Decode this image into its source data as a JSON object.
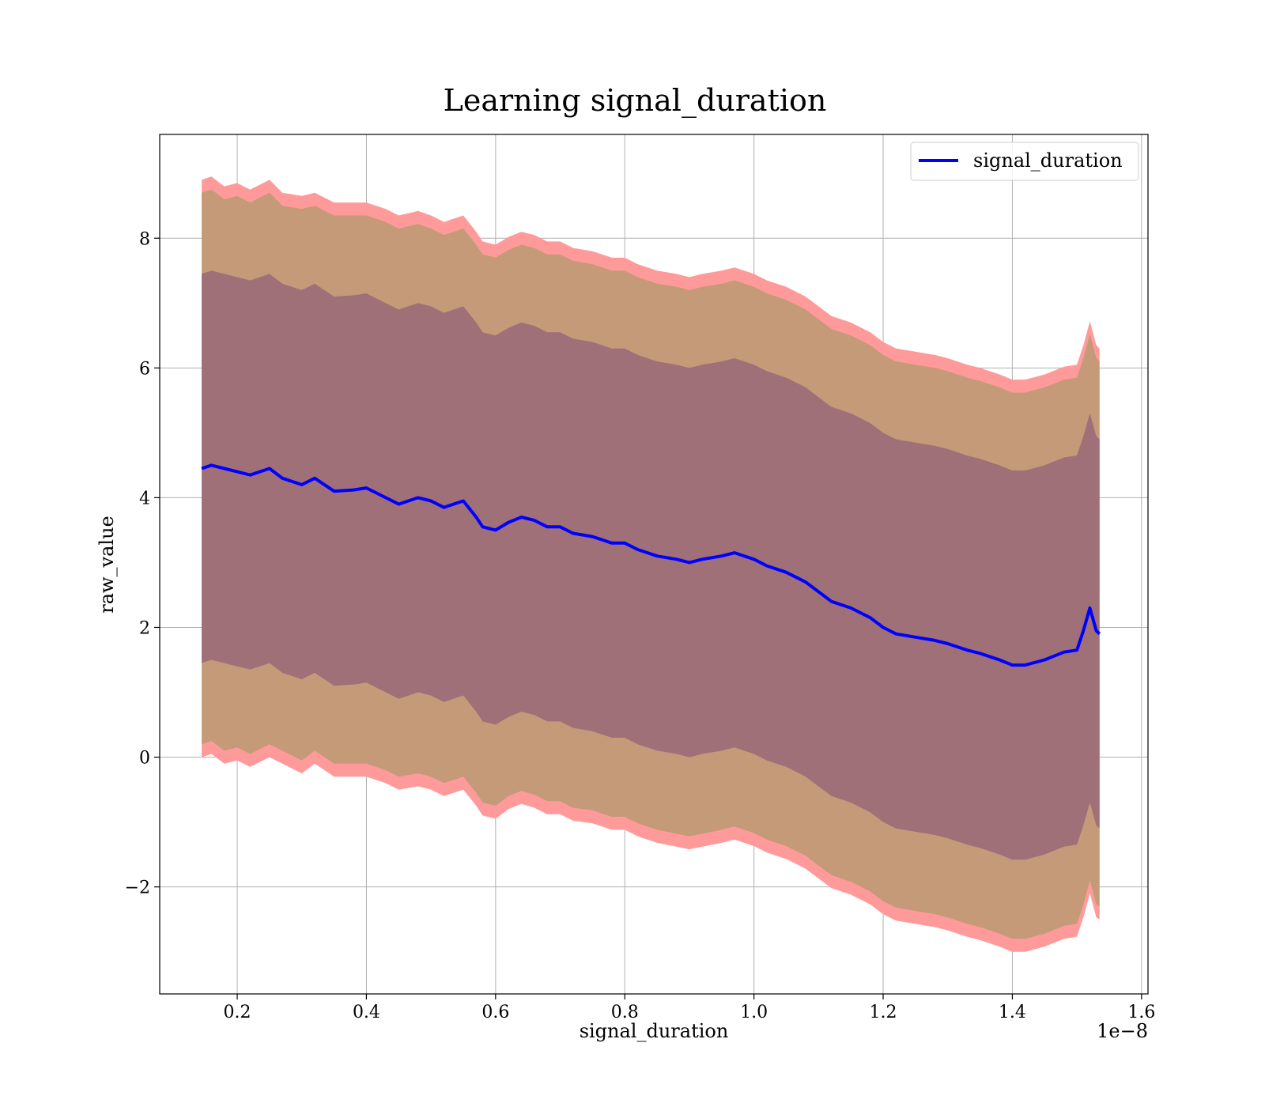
{
  "chart_data": {
    "type": "area",
    "title": "Learning signal_duration",
    "xlabel": "signal_duration",
    "ylabel": "raw_value",
    "x_offset_label": "1e−8",
    "xlim": [
      0.08,
      1.61
    ],
    "ylim": [
      -3.65,
      9.6
    ],
    "x_ticks": [
      {
        "value": 0.2,
        "label": "0.2"
      },
      {
        "value": 0.4,
        "label": "0.4"
      },
      {
        "value": 0.6,
        "label": "0.6"
      },
      {
        "value": 0.8,
        "label": "0.8"
      },
      {
        "value": 1.0,
        "label": "1.0"
      },
      {
        "value": 1.2,
        "label": "1.2"
      },
      {
        "value": 1.4,
        "label": "1.4"
      },
      {
        "value": 1.6,
        "label": "1.6"
      }
    ],
    "y_ticks": [
      {
        "value": -2,
        "label": "−2"
      },
      {
        "value": 0,
        "label": "0"
      },
      {
        "value": 2,
        "label": "2"
      },
      {
        "value": 4,
        "label": "4"
      },
      {
        "value": 6,
        "label": "6"
      },
      {
        "value": 8,
        "label": "8"
      }
    ],
    "grid": true,
    "legend": {
      "position": "top-right",
      "entries": [
        "signal_duration"
      ]
    },
    "x": [
      0.145,
      0.16,
      0.18,
      0.2,
      0.22,
      0.25,
      0.27,
      0.3,
      0.32,
      0.35,
      0.38,
      0.4,
      0.43,
      0.45,
      0.48,
      0.5,
      0.52,
      0.55,
      0.57,
      0.58,
      0.6,
      0.62,
      0.64,
      0.66,
      0.68,
      0.7,
      0.72,
      0.75,
      0.78,
      0.8,
      0.82,
      0.85,
      0.88,
      0.9,
      0.92,
      0.95,
      0.97,
      1.0,
      1.02,
      1.05,
      1.08,
      1.1,
      1.12,
      1.15,
      1.18,
      1.2,
      1.22,
      1.25,
      1.28,
      1.3,
      1.33,
      1.35,
      1.38,
      1.4,
      1.42,
      1.45,
      1.48,
      1.5,
      1.51,
      1.52,
      1.53,
      1.535
    ],
    "series": [
      {
        "name": "signal_duration",
        "color": "#0000ff",
        "values": [
          4.45,
          4.5,
          4.45,
          4.4,
          4.35,
          4.45,
          4.3,
          4.2,
          4.3,
          4.1,
          4.12,
          4.15,
          4.0,
          3.9,
          4.0,
          3.95,
          3.85,
          3.95,
          3.7,
          3.55,
          3.5,
          3.62,
          3.7,
          3.65,
          3.55,
          3.55,
          3.45,
          3.4,
          3.3,
          3.3,
          3.2,
          3.1,
          3.05,
          3.0,
          3.05,
          3.1,
          3.15,
          3.05,
          2.95,
          2.85,
          2.7,
          2.55,
          2.4,
          2.3,
          2.15,
          2.0,
          1.9,
          1.85,
          1.8,
          1.75,
          1.65,
          1.6,
          1.5,
          1.42,
          1.42,
          1.5,
          1.62,
          1.65,
          1.95,
          2.3,
          1.95,
          1.9
        ]
      }
    ],
    "bands": [
      {
        "name": "outer",
        "color": "#ff9a9a",
        "upper": [
          8.9,
          8.95,
          8.8,
          8.85,
          8.75,
          8.9,
          8.7,
          8.65,
          8.7,
          8.55,
          8.55,
          8.55,
          8.45,
          8.35,
          8.42,
          8.35,
          8.25,
          8.35,
          8.1,
          7.95,
          7.9,
          8.02,
          8.1,
          8.05,
          7.95,
          7.95,
          7.85,
          7.8,
          7.7,
          7.7,
          7.6,
          7.5,
          7.45,
          7.4,
          7.45,
          7.5,
          7.55,
          7.45,
          7.35,
          7.25,
          7.1,
          6.95,
          6.8,
          6.7,
          6.55,
          6.4,
          6.3,
          6.25,
          6.2,
          6.15,
          6.05,
          6.0,
          5.9,
          5.82,
          5.82,
          5.9,
          6.02,
          6.05,
          6.35,
          6.72,
          6.35,
          6.3
        ],
        "lower": [
          0.0,
          0.05,
          -0.1,
          -0.05,
          -0.15,
          0.0,
          -0.1,
          -0.25,
          -0.1,
          -0.3,
          -0.3,
          -0.3,
          -0.4,
          -0.5,
          -0.45,
          -0.5,
          -0.6,
          -0.5,
          -0.75,
          -0.9,
          -0.95,
          -0.8,
          -0.72,
          -0.78,
          -0.88,
          -0.88,
          -0.98,
          -1.02,
          -1.12,
          -1.12,
          -1.22,
          -1.32,
          -1.38,
          -1.42,
          -1.38,
          -1.32,
          -1.27,
          -1.37,
          -1.47,
          -1.57,
          -1.72,
          -1.87,
          -2.02,
          -2.12,
          -2.27,
          -2.42,
          -2.52,
          -2.57,
          -2.62,
          -2.67,
          -2.77,
          -2.82,
          -2.92,
          -3.0,
          -3.0,
          -2.92,
          -2.8,
          -2.77,
          -2.47,
          -2.1,
          -2.47,
          -2.5
        ]
      },
      {
        "name": "middle",
        "color": "#c49a78",
        "upper": [
          8.7,
          8.75,
          8.6,
          8.65,
          8.55,
          8.7,
          8.5,
          8.45,
          8.5,
          8.35,
          8.35,
          8.35,
          8.25,
          8.15,
          8.22,
          8.15,
          8.05,
          8.15,
          7.9,
          7.75,
          7.7,
          7.82,
          7.9,
          7.85,
          7.75,
          7.75,
          7.65,
          7.6,
          7.5,
          7.5,
          7.4,
          7.3,
          7.25,
          7.2,
          7.25,
          7.3,
          7.35,
          7.25,
          7.15,
          7.05,
          6.9,
          6.75,
          6.6,
          6.5,
          6.35,
          6.2,
          6.1,
          6.05,
          6.0,
          5.95,
          5.85,
          5.8,
          5.7,
          5.62,
          5.62,
          5.7,
          5.82,
          5.85,
          6.15,
          6.52,
          6.15,
          6.1
        ],
        "lower": [
          0.2,
          0.25,
          0.1,
          0.15,
          0.05,
          0.2,
          0.1,
          -0.05,
          0.1,
          -0.1,
          -0.1,
          -0.1,
          -0.2,
          -0.3,
          -0.25,
          -0.3,
          -0.4,
          -0.3,
          -0.55,
          -0.7,
          -0.75,
          -0.6,
          -0.52,
          -0.58,
          -0.68,
          -0.68,
          -0.78,
          -0.82,
          -0.92,
          -0.92,
          -1.02,
          -1.12,
          -1.18,
          -1.22,
          -1.18,
          -1.12,
          -1.07,
          -1.17,
          -1.27,
          -1.37,
          -1.52,
          -1.67,
          -1.82,
          -1.92,
          -2.07,
          -2.22,
          -2.32,
          -2.37,
          -2.42,
          -2.47,
          -2.57,
          -2.62,
          -2.72,
          -2.8,
          -2.8,
          -2.72,
          -2.6,
          -2.57,
          -2.27,
          -1.9,
          -2.27,
          -2.3
        ]
      },
      {
        "name": "inner",
        "color": "#a07078",
        "upper": [
          7.45,
          7.5,
          7.45,
          7.4,
          7.35,
          7.45,
          7.3,
          7.2,
          7.3,
          7.1,
          7.12,
          7.15,
          7.0,
          6.9,
          7.0,
          6.95,
          6.85,
          6.95,
          6.7,
          6.55,
          6.5,
          6.62,
          6.7,
          6.65,
          6.55,
          6.55,
          6.45,
          6.4,
          6.3,
          6.3,
          6.2,
          6.1,
          6.05,
          6.0,
          6.05,
          6.1,
          6.15,
          6.05,
          5.95,
          5.85,
          5.7,
          5.55,
          5.4,
          5.3,
          5.15,
          5.0,
          4.9,
          4.85,
          4.8,
          4.75,
          4.65,
          4.6,
          4.5,
          4.42,
          4.42,
          4.5,
          4.62,
          4.65,
          4.95,
          5.3,
          4.95,
          4.9
        ],
        "lower": [
          1.45,
          1.5,
          1.45,
          1.4,
          1.35,
          1.45,
          1.3,
          1.2,
          1.3,
          1.1,
          1.12,
          1.15,
          1.0,
          0.9,
          1.0,
          0.95,
          0.85,
          0.95,
          0.7,
          0.55,
          0.5,
          0.62,
          0.7,
          0.65,
          0.55,
          0.55,
          0.45,
          0.4,
          0.3,
          0.3,
          0.2,
          0.1,
          0.05,
          0.0,
          0.05,
          0.1,
          0.15,
          0.05,
          -0.05,
          -0.15,
          -0.3,
          -0.45,
          -0.6,
          -0.7,
          -0.85,
          -1.0,
          -1.1,
          -1.15,
          -1.2,
          -1.25,
          -1.35,
          -1.4,
          -1.5,
          -1.58,
          -1.58,
          -1.5,
          -1.38,
          -1.35,
          -1.05,
          -0.7,
          -1.05,
          -1.1
        ]
      }
    ]
  }
}
